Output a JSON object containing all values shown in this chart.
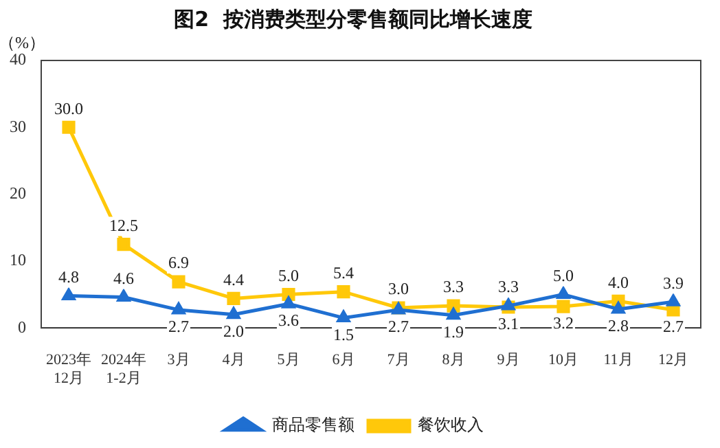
{
  "chart_data": {
    "type": "line",
    "title": "图2  按消费类型分零售额同比增长速度",
    "ylabel": "（%）",
    "categories": [
      "2023年\n12月",
      "2024年\n1-2月",
      "3月",
      "4月",
      "5月",
      "6月",
      "7月",
      "8月",
      "9月",
      "10月",
      "11月",
      "12月"
    ],
    "series": [
      {
        "name": "商品零售额",
        "color": "#1f6fd1",
        "marker": "triangle",
        "values": [
          4.8,
          4.6,
          2.7,
          2.0,
          3.6,
          1.5,
          2.7,
          1.9,
          3.3,
          5.0,
          2.8,
          3.9
        ],
        "value_labels": [
          "4.8",
          "4.6",
          "2.7",
          "2.0",
          "3.6",
          "1.5",
          "2.7",
          "1.9",
          "3.3",
          "5.0",
          "2.8",
          "3.9"
        ]
      },
      {
        "name": "餐饮收入",
        "color": "#ffc80a",
        "marker": "square",
        "values": [
          30.0,
          12.5,
          6.9,
          4.4,
          5.0,
          5.4,
          3.0,
          3.3,
          3.1,
          3.2,
          4.0,
          2.7
        ],
        "value_labels": [
          "30.0",
          "12.5",
          "6.9",
          "4.4",
          "5.0",
          "5.4",
          "3.0",
          "3.3",
          "3.1",
          "3.2",
          "4.0",
          "2.7"
        ]
      }
    ],
    "ylim": [
      0,
      40
    ],
    "yticks": [
      0,
      10,
      20,
      30,
      40
    ],
    "grid": false,
    "legend": "bottom"
  }
}
